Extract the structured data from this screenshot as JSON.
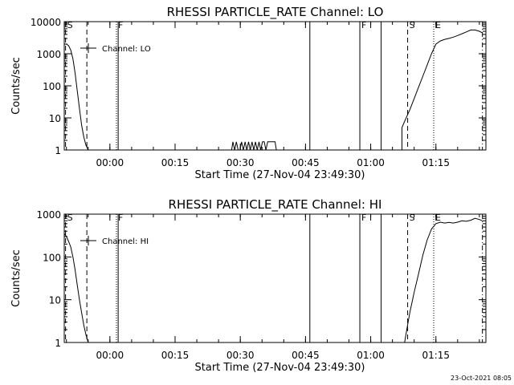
{
  "chart_data": [
    {
      "type": "line",
      "title": "RHESSI PARTICLE_RATE Channel: LO",
      "xlabel": "Start Time (27-Nov-04 23:49:30)",
      "ylabel": "Counts/sec",
      "y_scale": "log",
      "ylim": [
        1,
        10000
      ],
      "y_ticks": [
        1,
        10,
        100,
        1000,
        10000
      ],
      "y_tick_labels": [
        "1",
        "10",
        "100",
        "1000",
        "10000"
      ],
      "x_unit": "minutes after start",
      "xlim": [
        0,
        97
      ],
      "x_ticks": [
        10.5,
        25.5,
        40.5,
        55.5,
        70.5,
        85.5
      ],
      "x_tick_labels": [
        "00:00",
        "00:15",
        "00:30",
        "00:45",
        "01:00",
        "01:15"
      ],
      "legend": {
        "entries": [
          "Channel: LO"
        ],
        "position": "top-left"
      },
      "grid": false,
      "markers": [
        {
          "label": "S",
          "x": 0.3,
          "style": "dashed"
        },
        {
          "label": "",
          "x": 5.2,
          "style": "dashed"
        },
        {
          "label": "F",
          "x": 12.0,
          "style": "dotted"
        },
        {
          "label": "",
          "x": 12.4,
          "style": "solid"
        },
        {
          "label": "",
          "x": 56.5,
          "style": "solid"
        },
        {
          "label": "F",
          "x": 68.0,
          "style": "solid"
        },
        {
          "label": "",
          "x": 72.9,
          "style": "solid"
        },
        {
          "label": "S",
          "x": 79.0,
          "style": "dashed"
        },
        {
          "label": "E",
          "x": 85.0,
          "style": "dotted"
        },
        {
          "label": "",
          "x": 96.2,
          "style": "dashdot"
        }
      ],
      "series": [
        {
          "name": "Channel: LO",
          "x": [
            0.0,
            0.5,
            1.0,
            1.5,
            2.0,
            2.5,
            3.0,
            3.5,
            4.0,
            4.5,
            5.0,
            5.5,
            6.0
          ],
          "y": [
            2000,
            2000,
            1800,
            1300,
            700,
            250,
            70,
            20,
            6,
            2.5,
            1.4,
            1.0,
            1.0
          ]
        },
        {
          "name": "Channel: LO",
          "x": [
            38.5,
            38.8,
            39.2,
            39.6,
            40.0,
            40.4,
            40.8,
            41.2,
            41.6,
            42.0,
            42.4,
            42.8,
            43.2,
            43.6,
            44.0,
            44.4,
            44.8,
            45.2,
            45.6,
            46.0,
            46.4,
            46.8,
            47.2,
            48.5,
            48.8
          ],
          "y": [
            1,
            1.8,
            1,
            1.8,
            1,
            1,
            1.8,
            1,
            1.8,
            1,
            1.8,
            1,
            1.8,
            1,
            1.8,
            1,
            1.8,
            1,
            1.8,
            1.8,
            1,
            1.8,
            1.8,
            1.8,
            1
          ]
        },
        {
          "name": "Channel: LO",
          "x": [
            77.7,
            77.7,
            78.5,
            79.5,
            80.5,
            81.5,
            82.5,
            83.5,
            84.5,
            85.5,
            86.5,
            87.5,
            88.5,
            89.5,
            90.5,
            91.5,
            92.5,
            93.5,
            94.5,
            95.5,
            96.2
          ],
          "y": [
            1,
            5,
            9,
            18,
            40,
            90,
            200,
            450,
            1000,
            2000,
            2500,
            2800,
            3000,
            3300,
            3700,
            4200,
            4800,
            5500,
            5500,
            5000,
            4500
          ]
        }
      ]
    },
    {
      "type": "line",
      "title": "RHESSI PARTICLE_RATE Channel: HI",
      "xlabel": "Start Time (27-Nov-04 23:49:30)",
      "ylabel": "Counts/sec",
      "y_scale": "log",
      "ylim": [
        1,
        1000
      ],
      "y_ticks": [
        1,
        10,
        100,
        1000
      ],
      "y_tick_labels": [
        "1",
        "10",
        "100",
        "1000"
      ],
      "x_unit": "minutes after start",
      "xlim": [
        0,
        97
      ],
      "x_ticks": [
        10.5,
        25.5,
        40.5,
        55.5,
        70.5,
        85.5
      ],
      "x_tick_labels": [
        "00:00",
        "00:15",
        "00:30",
        "00:45",
        "01:00",
        "01:15"
      ],
      "legend": {
        "entries": [
          "Channel: HI"
        ],
        "position": "top-left"
      },
      "grid": false,
      "markers": [
        {
          "label": "S",
          "x": 0.3,
          "style": "dashed"
        },
        {
          "label": "",
          "x": 5.2,
          "style": "dashed"
        },
        {
          "label": "F",
          "x": 12.0,
          "style": "dotted"
        },
        {
          "label": "",
          "x": 12.4,
          "style": "solid"
        },
        {
          "label": "",
          "x": 56.5,
          "style": "solid"
        },
        {
          "label": "F",
          "x": 68.0,
          "style": "solid"
        },
        {
          "label": "",
          "x": 72.9,
          "style": "solid"
        },
        {
          "label": "S",
          "x": 79.0,
          "style": "dashed"
        },
        {
          "label": "E",
          "x": 85.0,
          "style": "dotted"
        },
        {
          "label": "",
          "x": 96.2,
          "style": "dashdot"
        }
      ],
      "series": [
        {
          "name": "Channel: HI",
          "x": [
            0.0,
            0.5,
            1.0,
            1.5,
            2.0,
            2.5,
            3.0,
            3.5,
            4.0,
            4.5,
            5.0,
            5.5,
            6.0
          ],
          "y": [
            350,
            300,
            230,
            170,
            100,
            50,
            22,
            10,
            5,
            2.5,
            1.5,
            1.0,
            1.0
          ]
        },
        {
          "name": "Channel: HI",
          "x": [
            78.3,
            78.8,
            79.5,
            80.5,
            81.5,
            82.5,
            83.5,
            84.5,
            85.5,
            86.5,
            87.5,
            88.5,
            89.5,
            90.5,
            91.5,
            92.5,
            93.5,
            94.5,
            95.5,
            96.2
          ],
          "y": [
            1,
            2,
            5,
            15,
            40,
            110,
            250,
            450,
            600,
            650,
            620,
            640,
            620,
            650,
            700,
            680,
            720,
            800,
            750,
            700
          ]
        }
      ]
    }
  ],
  "footer": {
    "date_stamp": "23-Oct-2021 08:05"
  }
}
